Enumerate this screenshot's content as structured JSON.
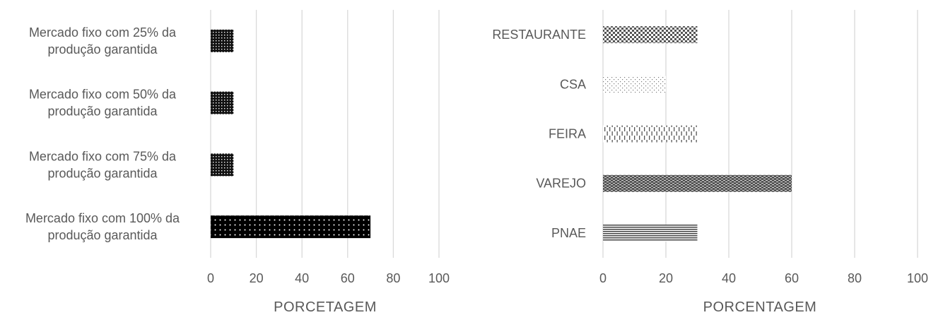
{
  "chart_data": [
    {
      "type": "bar",
      "orientation": "horizontal",
      "title": "",
      "xlabel": "PORCETAGEM",
      "ylabel": "",
      "categories": [
        [
          "Mercado fixo com 25% da",
          "produção garantida"
        ],
        [
          "Mercado fixo com 50% da",
          "produção garantida"
        ],
        [
          "Mercado fixo com 75% da",
          "produção garantida"
        ],
        [
          "Mercado fixo com 100% da",
          "produção garantida"
        ]
      ],
      "values": [
        10,
        10,
        10,
        70
      ],
      "patterns": [
        "dense-dots",
        "dense-dots",
        "dense-dots",
        "solid-dots"
      ],
      "xlim": [
        0,
        100
      ],
      "xticks": [
        0,
        20,
        40,
        60,
        80,
        100
      ],
      "grid": "vertical",
      "legend": "none"
    },
    {
      "type": "bar",
      "orientation": "horizontal",
      "title": "",
      "xlabel": "PORCENTAGEM",
      "ylabel": "",
      "categories": [
        [
          "RESTAURANTE"
        ],
        [
          "CSA"
        ],
        [
          "FEIRA"
        ],
        [
          "VAREJO"
        ],
        [
          "PNAE"
        ]
      ],
      "values": [
        30,
        20,
        30,
        60,
        30
      ],
      "patterns": [
        "checker",
        "sparse-dots",
        "dashed-vertical",
        "weave",
        "horizontal-lines"
      ],
      "xlim": [
        0,
        100
      ],
      "xticks": [
        0,
        20,
        40,
        60,
        80,
        100
      ],
      "grid": "vertical",
      "legend": "none"
    }
  ]
}
